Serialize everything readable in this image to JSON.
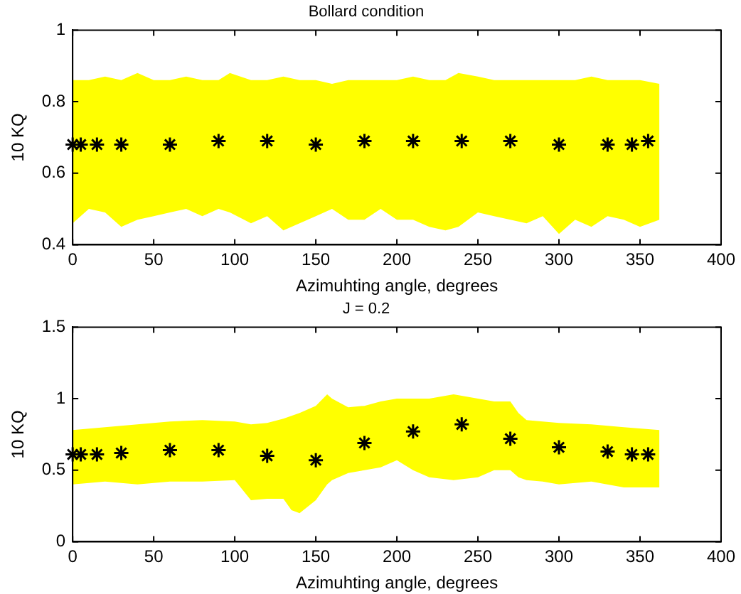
{
  "chart_data": [
    {
      "type": "scatter",
      "title": "Bollard condition",
      "xlabel": "Azimuhting angle, degrees",
      "ylabel": "10 KQ",
      "xlim": [
        0,
        400
      ],
      "xticks": [
        0,
        50,
        100,
        150,
        200,
        250,
        300,
        350,
        400
      ],
      "ylim": [
        0.4,
        1
      ],
      "yticks": [
        0.4,
        0.6,
        0.8,
        1
      ],
      "grid": false,
      "legend": false,
      "marker": "cross",
      "series": [
        {
          "type": "area",
          "color": "#ffff00",
          "x": [
            0,
            10,
            20,
            30,
            40,
            50,
            60,
            70,
            80,
            90,
            97,
            110,
            120,
            130,
            140,
            150,
            160,
            170,
            180,
            190,
            200,
            210,
            220,
            230,
            238,
            250,
            260,
            270,
            280,
            290,
            300,
            310,
            320,
            330,
            340,
            350,
            362
          ],
          "values": [
            null,
            null,
            null,
            null,
            null,
            null,
            null,
            null,
            null,
            null,
            null,
            null,
            null,
            null,
            null,
            null,
            null,
            null,
            null,
            null,
            null,
            null,
            null,
            null,
            null,
            null,
            null,
            null,
            null,
            null,
            null,
            null,
            null,
            null,
            null,
            null,
            null
          ],
          "lower": [
            0.46,
            0.5,
            0.49,
            0.45,
            0.47,
            0.48,
            0.49,
            0.5,
            0.48,
            0.5,
            0.49,
            0.46,
            0.48,
            0.44,
            0.46,
            0.48,
            0.5,
            0.47,
            0.47,
            0.5,
            0.47,
            0.47,
            0.45,
            0.44,
            0.45,
            0.49,
            0.48,
            0.47,
            0.46,
            0.48,
            0.43,
            0.47,
            0.45,
            0.48,
            0.47,
            0.45,
            0.47
          ],
          "upper": [
            0.86,
            0.86,
            0.87,
            0.86,
            0.88,
            0.86,
            0.86,
            0.87,
            0.86,
            0.86,
            0.88,
            0.86,
            0.86,
            0.87,
            0.86,
            0.86,
            0.85,
            0.86,
            0.86,
            0.86,
            0.86,
            0.87,
            0.86,
            0.86,
            0.88,
            0.87,
            0.86,
            0.86,
            0.86,
            0.86,
            0.86,
            0.86,
            0.87,
            0.86,
            0.86,
            0.86,
            0.85
          ]
        },
        {
          "color": "#000000",
          "x": [
            0,
            5,
            15,
            30,
            60,
            90,
            120,
            150,
            180,
            210,
            240,
            270,
            300,
            330,
            345,
            355
          ],
          "values": [
            0.68,
            0.68,
            0.68,
            0.68,
            0.68,
            0.69,
            0.69,
            0.68,
            0.69,
            0.69,
            0.69,
            0.69,
            0.68,
            0.68,
            0.68,
            0.69
          ]
        }
      ]
    },
    {
      "type": "scatter",
      "title": "J = 0.2",
      "xlabel": "Azimuhting angle, degrees",
      "ylabel": "10 KQ",
      "xlim": [
        0,
        400
      ],
      "xticks": [
        0,
        50,
        100,
        150,
        200,
        250,
        300,
        350,
        400
      ],
      "ylim": [
        0,
        1.5
      ],
      "yticks": [
        0,
        0.5,
        1,
        1.5
      ],
      "grid": false,
      "legend": false,
      "marker": "cross",
      "series": [
        {
          "type": "area",
          "color": "#ffff00",
          "x": [
            0,
            20,
            40,
            60,
            80,
            100,
            110,
            120,
            130,
            135,
            140,
            150,
            157,
            160,
            170,
            180,
            190,
            200,
            210,
            220,
            235,
            250,
            260,
            270,
            275,
            280,
            290,
            300,
            320,
            340,
            362
          ],
          "values": [
            null,
            null,
            null,
            null,
            null,
            null,
            null,
            null,
            null,
            null,
            null,
            null,
            null,
            null,
            null,
            null,
            null,
            null,
            null,
            null,
            null,
            null,
            null,
            null,
            null,
            null,
            null,
            null,
            null,
            null,
            null
          ],
          "lower": [
            0.4,
            0.42,
            0.4,
            0.42,
            0.42,
            0.43,
            0.29,
            0.3,
            0.3,
            0.22,
            0.2,
            0.29,
            0.4,
            0.43,
            0.48,
            0.5,
            0.52,
            0.57,
            0.5,
            0.45,
            0.43,
            0.45,
            0.5,
            0.5,
            0.45,
            0.43,
            0.42,
            0.4,
            0.42,
            0.38,
            0.38
          ],
          "upper": [
            0.78,
            0.8,
            0.82,
            0.84,
            0.85,
            0.84,
            0.82,
            0.83,
            0.86,
            0.88,
            0.9,
            0.95,
            1.03,
            1.0,
            0.94,
            0.95,
            0.98,
            1.0,
            1.0,
            1.0,
            1.03,
            1.0,
            0.98,
            0.98,
            0.9,
            0.85,
            0.84,
            0.83,
            0.82,
            0.8,
            0.78
          ]
        },
        {
          "color": "#000000",
          "x": [
            0,
            5,
            15,
            30,
            60,
            90,
            120,
            150,
            180,
            210,
            240,
            270,
            300,
            330,
            345,
            355
          ],
          "values": [
            0.61,
            0.61,
            0.61,
            0.62,
            0.64,
            0.64,
            0.6,
            0.57,
            0.69,
            0.77,
            0.82,
            0.72,
            0.66,
            0.63,
            0.61,
            0.61
          ]
        }
      ]
    }
  ]
}
